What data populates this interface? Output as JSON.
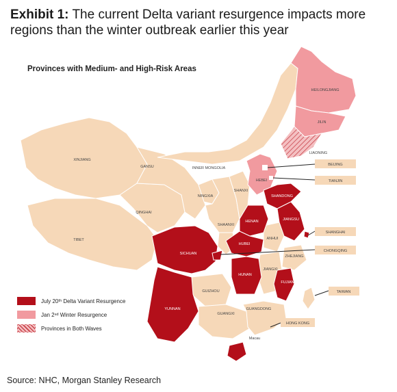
{
  "title": {
    "prefix": "Exhibit 1:",
    "text": "The current Delta variant resurgence impacts more regions than the winter outbreak earlier this year"
  },
  "map_title": "Provinces with Medium- and High-Risk Areas",
  "colors": {
    "base": "#f6d8b8",
    "delta": "#b30f1a",
    "winter": "#f19a9f",
    "border": "#ffffff",
    "callout_bg": "#f6d8b8",
    "sea": "#ffffff"
  },
  "provinces": {
    "heilongjiang": "HEILONGJIANG",
    "jilin": "JILIN",
    "liaoning": "LIAONING",
    "xinjiang": "XINJIANG",
    "gansu": "GANSU",
    "inner_mongolia": "INNER MONGOLIA",
    "hebei": "HEBEI",
    "shanxi": "SHANXI",
    "ningxia": "NINGXIA",
    "shandong": "SHANDONG",
    "qinghai": "QINGHAI",
    "henan": "HENAN",
    "shaanxi": "SHAANXI",
    "jiangsu": "JIANGSU",
    "anhui": "ANHUI",
    "tibet": "TIBET",
    "hubei": "HUBEI",
    "sichuan": "SICHUAN",
    "zhejiang": "ZHEJIANG",
    "jiangxi": "JIANGXI",
    "hunan": "HUNAN",
    "guizhou": "GUIZHOU",
    "fujian": "FUJIAN",
    "yunnan": "YUNNAN",
    "guangxi": "GUANGXI",
    "guangdong": "GUANGDONG",
    "macau": "Macau"
  },
  "callouts": {
    "beijing": "BEIJING",
    "tianjin": "TIANJIN",
    "shanghai": "SHANGHAI",
    "chongqing": "CHONGQING",
    "taiwan": "TAIWAN",
    "hong_kong": "HONG KONG"
  },
  "legend": [
    {
      "label": "July 20ᵗʰ Delta Variant Resurgence",
      "kind": "delta"
    },
    {
      "label": "Jan 2ⁿᵈ Winter Resurgence",
      "kind": "winter"
    },
    {
      "label": "Provinces in Both Waves",
      "kind": "both"
    }
  ],
  "source": "Source: NHC, Morgan Stanley Research"
}
